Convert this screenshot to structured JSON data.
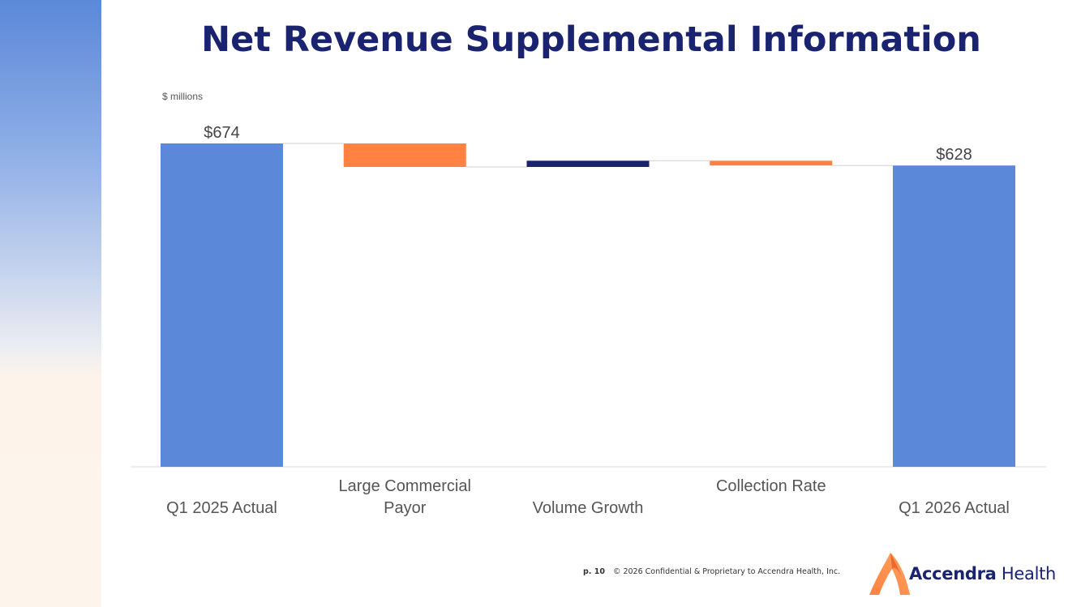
{
  "slide": {
    "title": "Net Revenue Supplemental Information",
    "units": "$ millions"
  },
  "footer": {
    "page": "p. 10",
    "copyright": "© 2026 Confidential & Proprietary to Accendra Health, Inc."
  },
  "logo": {
    "brand": "Accendra",
    "suffix": "Health",
    "icon": "accendra-flame-logo-icon"
  },
  "colors": {
    "total": "#5b88d9",
    "decrease": "#ff8243",
    "increase": "#1a2370",
    "title": "#1a2370"
  },
  "chart_data": {
    "type": "bar",
    "subtype": "waterfall",
    "title": "Net Revenue Supplemental Information",
    "ylabel": "$ millions",
    "ylim": [
      0,
      674
    ],
    "categories": [
      {
        "line1": "",
        "line2": "Q1 2025 Actual"
      },
      {
        "line1": "Large Commercial",
        "line2": "Payor"
      },
      {
        "line1": "",
        "line2": "Volume Growth"
      },
      {
        "line1": "Collection Rate",
        "line2": ""
      },
      {
        "line1": "",
        "line2": "Q1 2026 Actual"
      }
    ],
    "steps": [
      {
        "kind": "total",
        "value": 674,
        "label": "$674"
      },
      {
        "kind": "decrease",
        "value": -49,
        "label": ""
      },
      {
        "kind": "increase",
        "value": 13,
        "label": ""
      },
      {
        "kind": "decrease",
        "value": -10,
        "label": ""
      },
      {
        "kind": "total",
        "value": 628,
        "label": "$628"
      }
    ],
    "connectors": true,
    "grid": false,
    "legend": "none"
  }
}
